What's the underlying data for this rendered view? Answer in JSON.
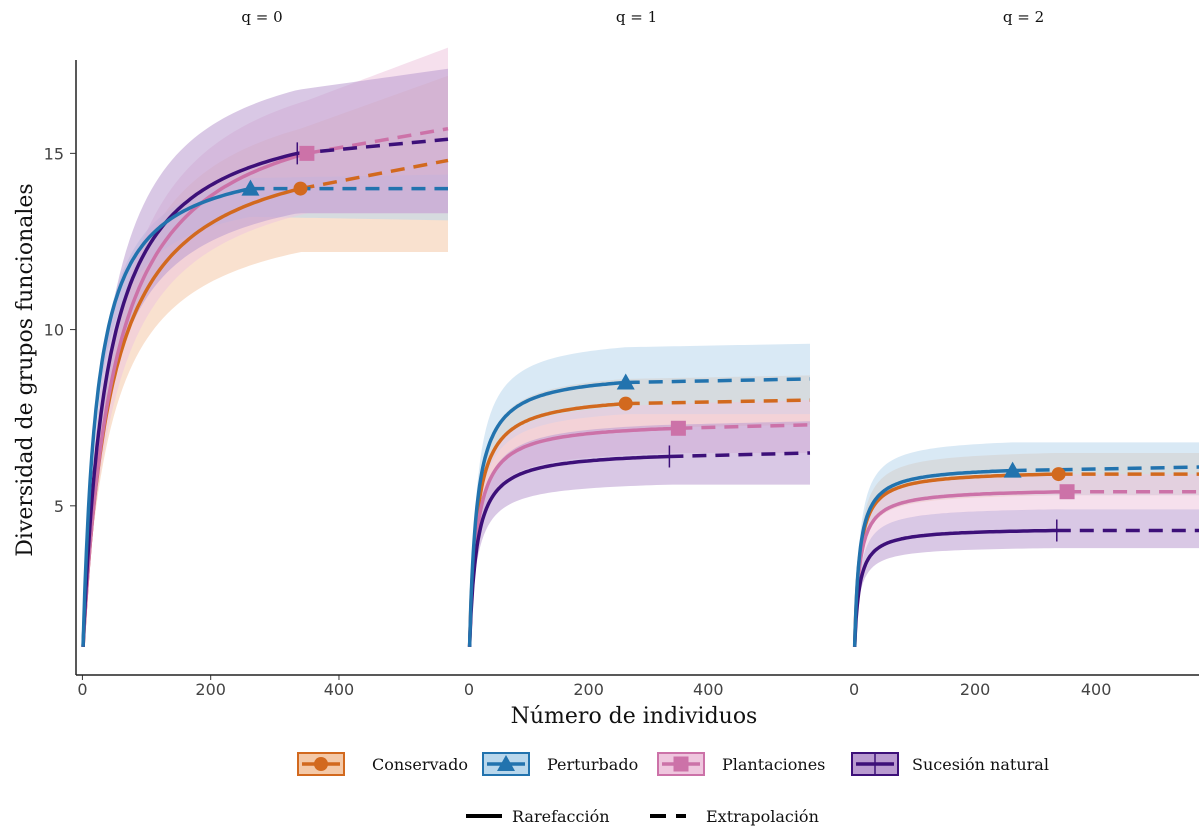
{
  "chart_data": {
    "type": "line",
    "ylabel": "Diversidad de grupos funcionales",
    "xlabel": "Número de individuos",
    "ylim": [
      0.2,
      18.5
    ],
    "yticks": [
      5,
      10,
      15
    ],
    "grid": false,
    "legend_position": "bottom",
    "panels": [
      {
        "title": "q = 0",
        "xlim": [
          -10,
          570
        ],
        "xticks": [
          0,
          200,
          400
        ],
        "series": [
          {
            "key": "conservado",
            "x_obs": 340,
            "x_end": 570,
            "y_obs": 14.0,
            "y_end": 14.8,
            "k": 45,
            "lower": [
              12.2,
              12.2
            ],
            "upper": [
              15.7,
              17.2
            ]
          },
          {
            "key": "perturbado",
            "x_obs": 262,
            "x_end": 570,
            "y_obs": 14.0,
            "y_end": 14.0,
            "k": 22,
            "lower": [
              13.2,
              13.1
            ],
            "upper": [
              14.3,
              14.4
            ]
          },
          {
            "key": "plantaciones",
            "x_obs": 350,
            "x_end": 570,
            "y_obs": 15.0,
            "y_end": 15.7,
            "k": 50,
            "lower": [
              13.3,
              13.3
            ],
            "upper": [
              16.5,
              18.0
            ]
          },
          {
            "key": "sucesion",
            "x_obs": 335,
            "x_end": 570,
            "y_obs": 15.0,
            "y_end": 15.4,
            "k": 38,
            "lower": [
              13.3,
              13.3
            ],
            "upper": [
              16.8,
              17.4
            ]
          }
        ]
      },
      {
        "title": "q = 1",
        "xlim": [
          -10,
          570
        ],
        "xticks": [
          0,
          200,
          400
        ],
        "series": [
          {
            "key": "conservado",
            "x_obs": 262,
            "x_end": 570,
            "y_obs": 7.9,
            "y_end": 8.0,
            "k": 12,
            "lower": [
              7.2,
              7.3
            ],
            "upper": [
              8.6,
              8.7
            ]
          },
          {
            "key": "perturbado",
            "x_obs": 262,
            "x_end": 570,
            "y_obs": 8.5,
            "y_end": 8.6,
            "k": 12,
            "lower": [
              7.6,
              7.6
            ],
            "upper": [
              9.5,
              9.6
            ]
          },
          {
            "key": "plantaciones",
            "x_obs": 350,
            "x_end": 570,
            "y_obs": 7.2,
            "y_end": 7.3,
            "k": 12,
            "lower": [
              6.5,
              6.5
            ],
            "upper": [
              7.9,
              8.0
            ]
          },
          {
            "key": "sucesion",
            "x_obs": 335,
            "x_end": 570,
            "y_obs": 6.4,
            "y_end": 6.5,
            "k": 12,
            "lower": [
              5.6,
              5.6
            ],
            "upper": [
              7.3,
              7.4
            ]
          }
        ]
      },
      {
        "title": "q = 2",
        "xlim": [
          -10,
          570
        ],
        "xticks": [
          0,
          200,
          400
        ],
        "series": [
          {
            "key": "conservado",
            "x_obs": 338,
            "x_end": 570,
            "y_obs": 5.9,
            "y_end": 5.9,
            "k": 8,
            "lower": [
              5.3,
              5.3
            ],
            "upper": [
              6.5,
              6.5
            ]
          },
          {
            "key": "perturbado",
            "x_obs": 262,
            "x_end": 570,
            "y_obs": 6.0,
            "y_end": 6.1,
            "k": 8,
            "lower": [
              5.3,
              5.3
            ],
            "upper": [
              6.8,
              6.8
            ]
          },
          {
            "key": "plantaciones",
            "x_obs": 352,
            "x_end": 570,
            "y_obs": 5.4,
            "y_end": 5.4,
            "k": 8,
            "lower": [
              4.9,
              4.9
            ],
            "upper": [
              5.9,
              5.9
            ]
          },
          {
            "key": "sucesion",
            "x_obs": 335,
            "x_end": 570,
            "y_obs": 4.3,
            "y_end": 4.3,
            "k": 8,
            "lower": [
              3.8,
              3.8
            ],
            "upper": [
              4.9,
              4.9
            ]
          }
        ]
      }
    ],
    "legend": [
      {
        "key": "conservado",
        "label": "Conservado",
        "color": "#D2691E",
        "fill": "#F4C9A8",
        "marker": "circle"
      },
      {
        "key": "perturbado",
        "label": "Perturbado",
        "color": "#2273AE",
        "fill": "#B9D7EC",
        "marker": "triangle"
      },
      {
        "key": "plantaciones",
        "label": "Plantaciones",
        "color": "#CC72A8",
        "fill": "#EFC6DE",
        "marker": "square"
      },
      {
        "key": "sucesion",
        "label": "Sucesión natural",
        "color": "#3D1079",
        "fill": "#B99BD0",
        "marker": "cross"
      }
    ],
    "line_legend": [
      {
        "style": "solid",
        "label": "Rarefacción"
      },
      {
        "style": "dashed",
        "label": "Extrapolación"
      }
    ]
  }
}
